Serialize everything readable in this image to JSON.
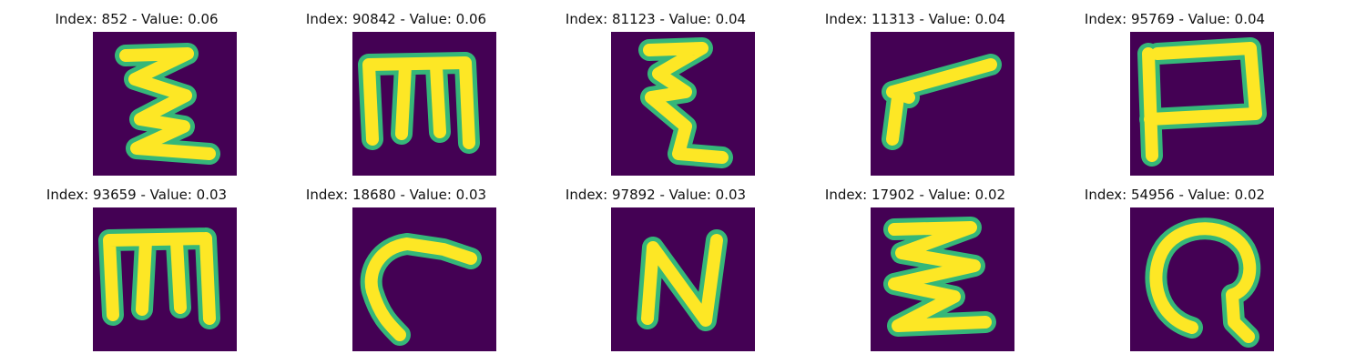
{
  "figure": {
    "panels": [
      {
        "title": "Index: 852 - Value: 0.06",
        "glyph": "z-zigzag-icon"
      },
      {
        "title": "Index: 90842 - Value: 0.06",
        "glyph": "m-shape-icon"
      },
      {
        "title": "Index: 81123 - Value: 0.04",
        "glyph": "zigzag-icon"
      },
      {
        "title": "Index: 11313 - Value: 0.04",
        "glyph": "check-stroke-icon"
      },
      {
        "title": "Index: 95769 - Value: 0.04",
        "glyph": "p-shape-icon"
      },
      {
        "title": "Index: 93659 - Value: 0.03",
        "glyph": "m-shape-icon"
      },
      {
        "title": "Index: 18680 - Value: 0.03",
        "glyph": "c-curve-icon"
      },
      {
        "title": "Index: 97892 - Value: 0.03",
        "glyph": "n-shape-icon"
      },
      {
        "title": "Index: 17902 - Value: 0.02",
        "glyph": "e-zigzag-icon"
      },
      {
        "title": "Index: 54956 - Value: 0.02",
        "glyph": "q-loop-icon"
      }
    ],
    "colors": {
      "background": "#440154",
      "stroke": "#fde725",
      "edge": "#35b779"
    }
  }
}
